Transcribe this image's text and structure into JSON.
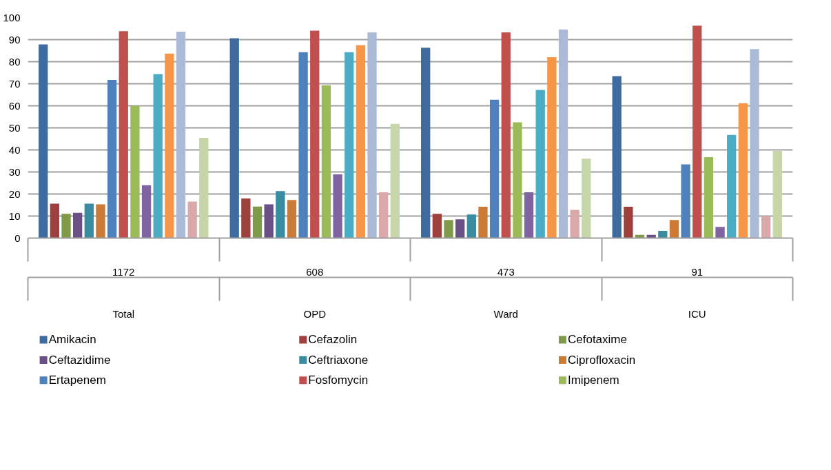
{
  "chart_data": {
    "type": "bar",
    "categories": [
      "1172\nTotal",
      "608\nOPD",
      "473\nWard",
      "91\nICU"
    ],
    "series": [
      {
        "name": "Amikacin",
        "color": "#3f6b9e",
        "values": [
          87.8,
          90.6,
          86.3,
          73.4
        ]
      },
      {
        "name": "Cefazolin",
        "color": "#9e413e",
        "values": [
          15.6,
          18,
          11,
          14.2
        ]
      },
      {
        "name": "Cefotaxime",
        "color": "#7f9a48",
        "values": [
          11,
          14.3,
          8.2,
          1.5
        ]
      },
      {
        "name": "Ceftazidime",
        "color": "#695185",
        "values": [
          11.5,
          15.3,
          8.5,
          1.5
        ]
      },
      {
        "name": "Ceftriaxone",
        "color": "#3a8da0",
        "values": [
          15.6,
          21.3,
          10.7,
          3.3
        ]
      },
      {
        "name": "Ciprofloxacin",
        "color": "#cb7b36",
        "values": [
          15.3,
          17.3,
          14.2,
          8.2
        ]
      },
      {
        "name": "Ertapenem",
        "color": "#4f81bd",
        "values": [
          71.7,
          84.3,
          62.7,
          33.4
        ]
      },
      {
        "name": "Fosfomycin",
        "color": "#c0504d",
        "values": [
          93.8,
          94.1,
          93.3,
          96.3
        ]
      },
      {
        "name": "Imipenem",
        "color": "#9bbb59",
        "values": [
          60,
          69.3,
          52.5,
          36.7
        ]
      },
      {
        "color": "#8064a2",
        "values": [
          24,
          28.9,
          20.8,
          5.1
        ]
      },
      {
        "color": "#4bacc6",
        "values": [
          74.4,
          84.3,
          67.2,
          46.8
        ]
      },
      {
        "color": "#f79646",
        "values": [
          83.7,
          87.5,
          82,
          61.2
        ]
      },
      {
        "color": "#aabad7",
        "values": [
          93.6,
          93.3,
          94.6,
          85.7
        ]
      },
      {
        "color": "#d9a8a8",
        "values": [
          16.6,
          20.8,
          12.8,
          10
        ]
      },
      {
        "color": "#c6d6a9",
        "values": [
          45.5,
          51.8,
          36,
          39.5
        ]
      }
    ],
    "ylim": [
      0,
      100
    ],
    "yticks": [
      0,
      10,
      20,
      30,
      40,
      50,
      60,
      70,
      80,
      90,
      100
    ],
    "grid": "y",
    "legend": "bottom"
  }
}
